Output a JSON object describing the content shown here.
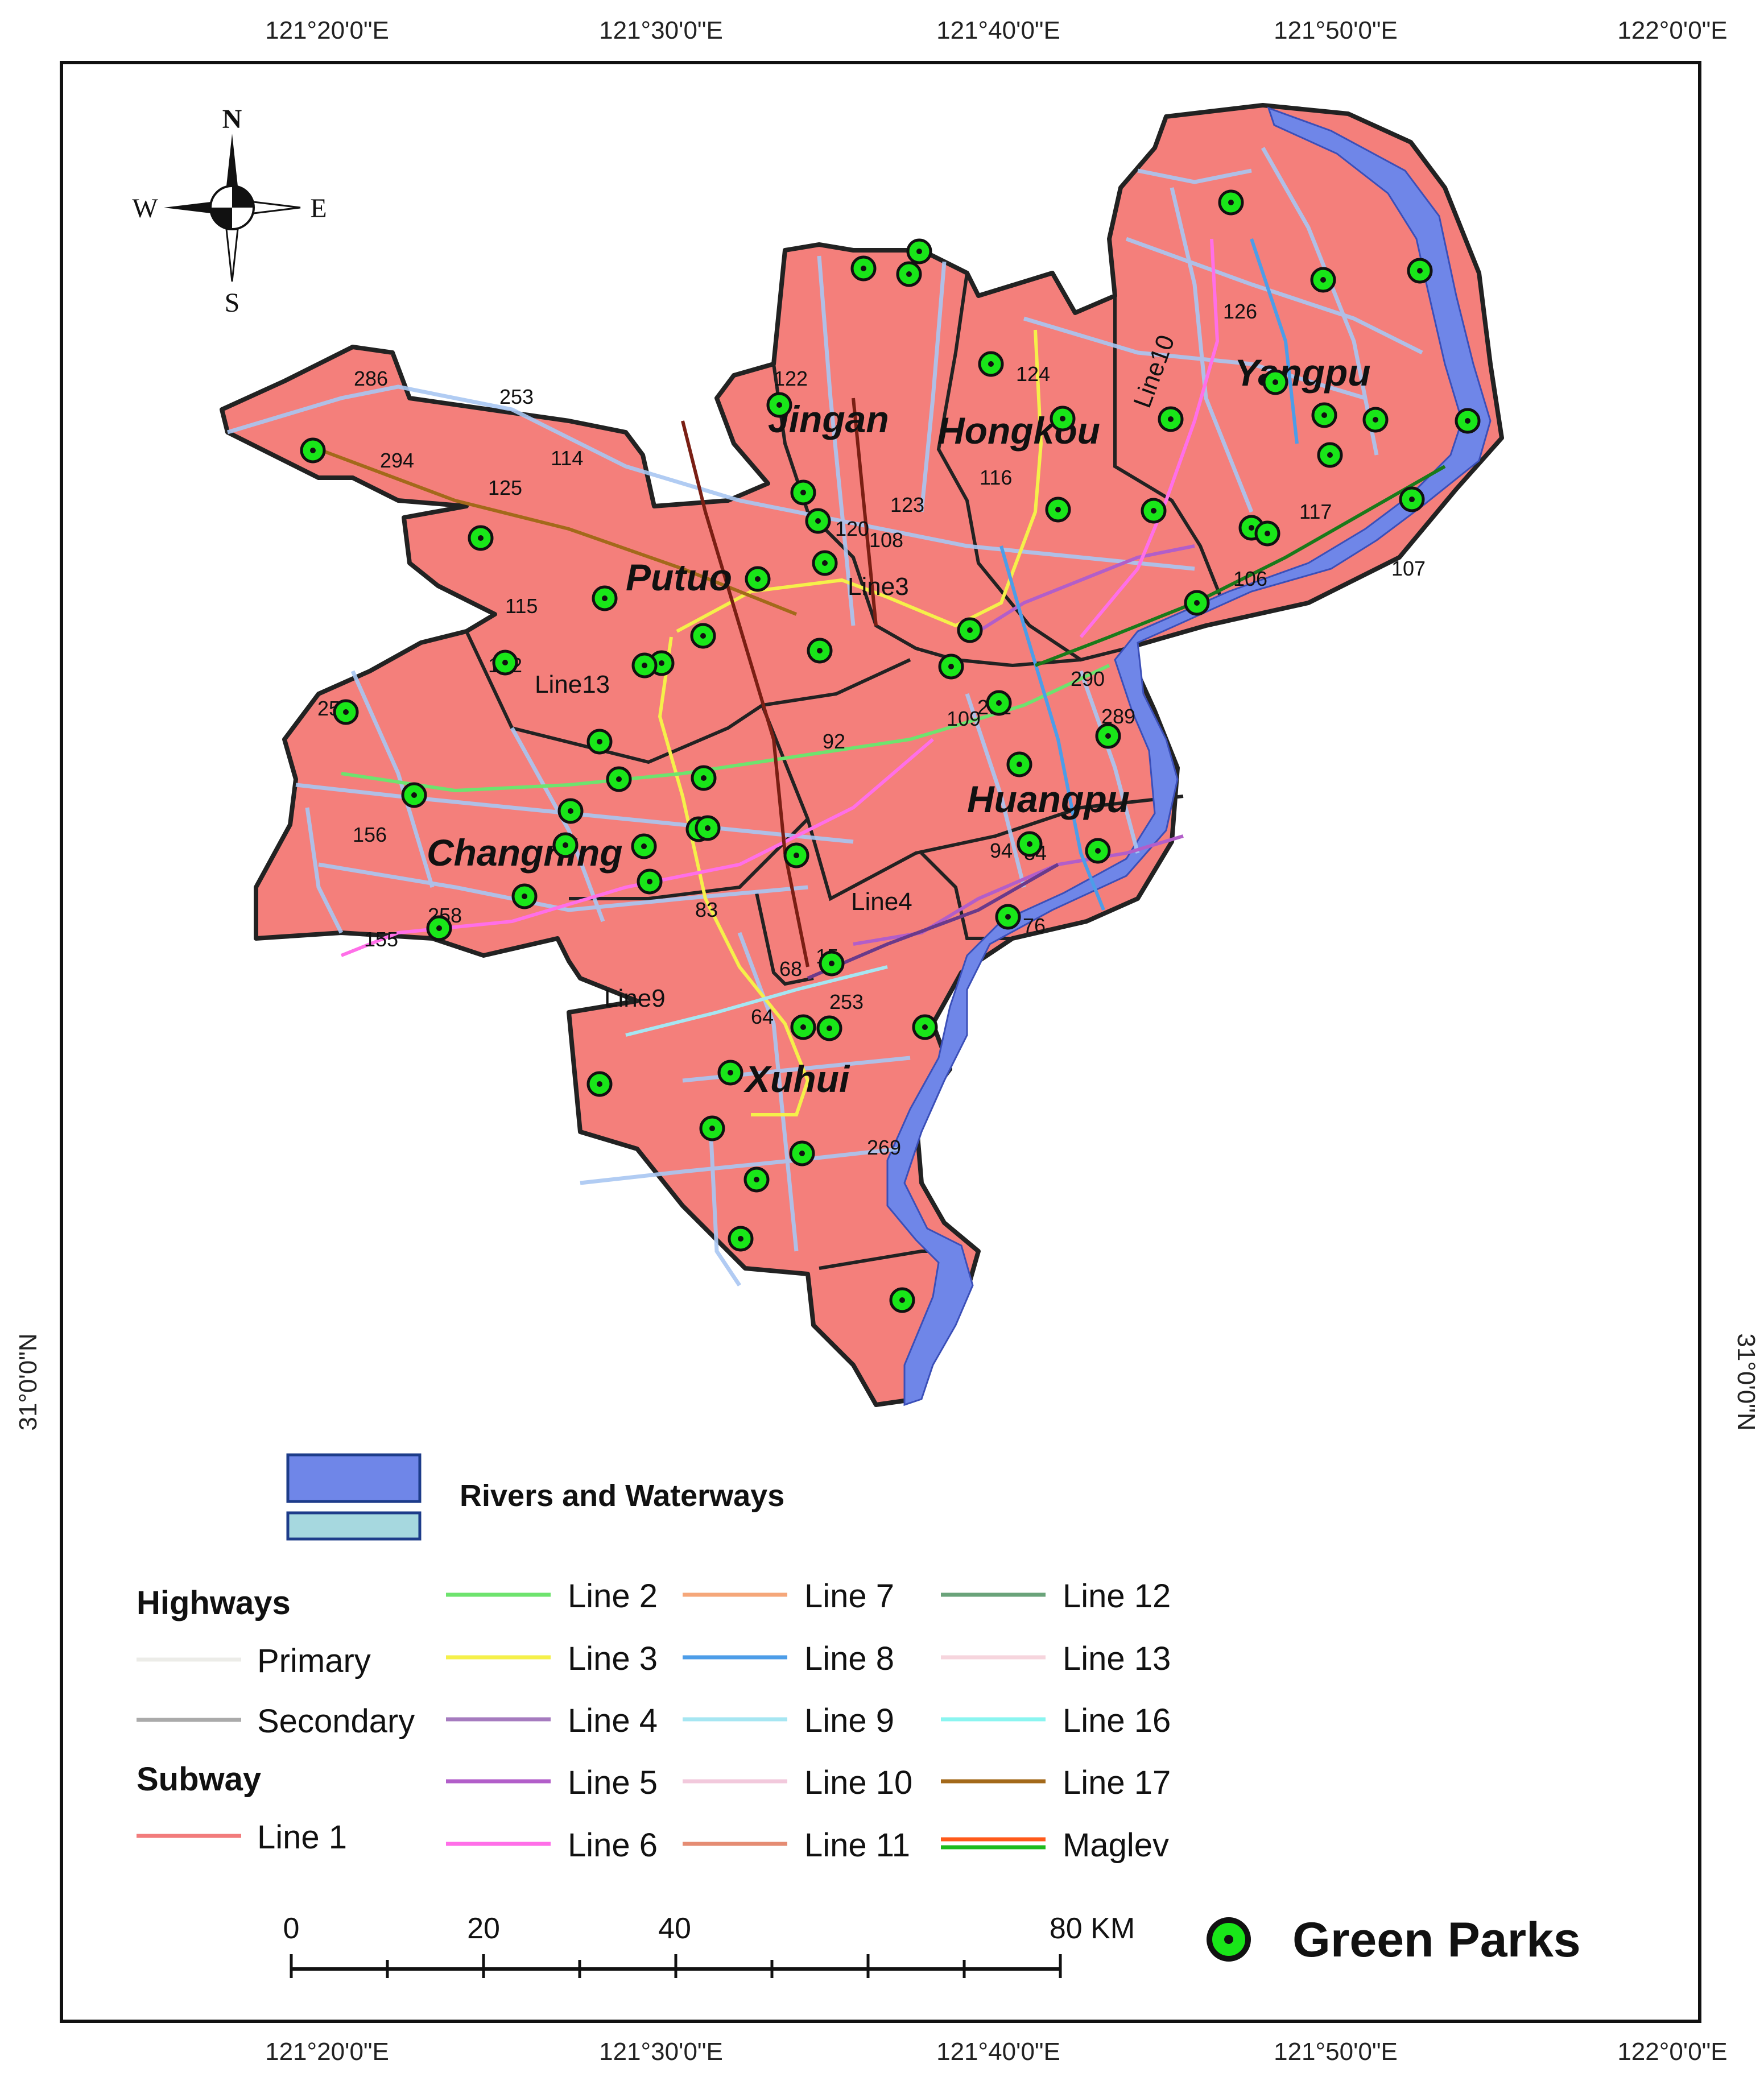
{
  "coordinates": {
    "top": [
      "121°20'0\"E",
      "121°30'0\"E",
      "121°40'0\"E",
      "121°50'0\"E",
      "122°0'0\"E"
    ],
    "bottom": [
      "121°20'0\"E",
      "121°30'0\"E",
      "121°40'0\"E",
      "121°50'0\"E",
      "122°0'0\"E"
    ],
    "left": "31°0'0\"N",
    "right": "31°0'0\"N"
  },
  "compass": {
    "n": "N",
    "s": "S",
    "e": "E",
    "w": "W"
  },
  "districts": [
    "Jingan",
    "Hongkou",
    "Yangpu",
    "Putuo",
    "Changning",
    "Huangpu",
    "Xuhui"
  ],
  "road_labels": [
    "286",
    "253",
    "294",
    "114",
    "125",
    "115",
    "102",
    "259",
    "156",
    "155",
    "258",
    "122",
    "123",
    "120",
    "108",
    "116",
    "124",
    "126",
    "117",
    "106",
    "107",
    "290",
    "289",
    "109",
    "251",
    "92",
    "94",
    "84",
    "76",
    "83",
    "68",
    "15",
    "64",
    "253",
    "269"
  ],
  "line_labels": [
    "Line13",
    "Line3",
    "Line10",
    "Line4",
    "Line9"
  ],
  "legend": {
    "rivers": "Rivers and Waterways",
    "highways_title": "Highways",
    "primary": "Primary",
    "secondary": "Secondary",
    "subway_title": "Subway",
    "line1": "Line 1",
    "lines": [
      {
        "label": "Line 2",
        "color": "#6ee36e"
      },
      {
        "label": "Line 3",
        "color": "#f5f04a"
      },
      {
        "label": "Line 4",
        "color": "#a57bbf"
      },
      {
        "label": "Line 5",
        "color": "#b25ec9"
      },
      {
        "label": "Line 6",
        "color": "#ff6fe8"
      },
      {
        "label": "Line 7",
        "color": "#f5a77a"
      },
      {
        "label": "Line 8",
        "color": "#4d9de8"
      },
      {
        "label": "Line 9",
        "color": "#a6e6f2"
      },
      {
        "label": "Line 10",
        "color": "#f2c9dc"
      },
      {
        "label": "Line 11",
        "color": "#e58c73"
      },
      {
        "label": "Line 12",
        "color": "#6aa37a"
      },
      {
        "label": "Line 13",
        "color": "#f6d5dd"
      },
      {
        "label": "Line 16",
        "color": "#8af5f0"
      },
      {
        "label": "Line 17",
        "color": "#a3691a"
      },
      {
        "label": "Maglev",
        "color": "#ff5a1a"
      }
    ],
    "primary_color": "#ecece8",
    "secondary_color": "#aaaaaa",
    "line1_color": "#f27c7c",
    "maglev_second_color": "#1dbb1d",
    "green_parks": "Green Parks"
  },
  "scale_bar": {
    "labels": [
      "0",
      "20",
      "40",
      "80 KM"
    ]
  },
  "colors": {
    "district_fill": "#f47f7b",
    "river": "#6f86e8",
    "river_light": "#a6d8df",
    "park": "#19e619",
    "road": "#a9c6f2"
  },
  "park_count": 58
}
